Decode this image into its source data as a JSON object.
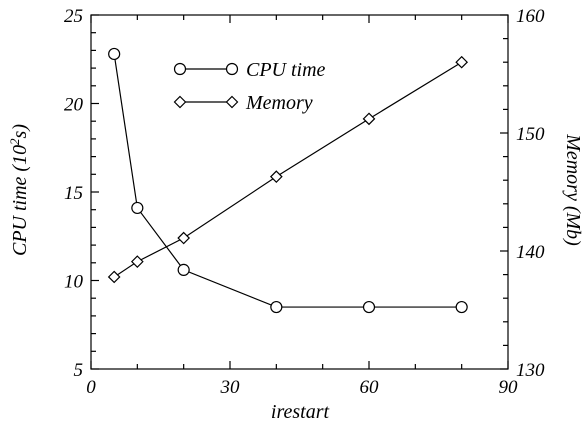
{
  "chart_data": {
    "type": "line",
    "xlabel": "irestart",
    "ylabel_left": "CPU time (10",
    "ylabel_left_sup": "2",
    "ylabel_left_tail": "s)",
    "ylabel_right": "Memory (Mb)",
    "xlim": [
      0,
      90
    ],
    "ylim_left": [
      5,
      25
    ],
    "ylim_right": [
      130,
      160
    ],
    "x_ticks": [
      0,
      30,
      60,
      90
    ],
    "x_minor_ticks": [
      10,
      20,
      40,
      50,
      70,
      80
    ],
    "y_left_ticks": [
      5,
      10,
      15,
      20,
      25
    ],
    "y_right_ticks": [
      130,
      140,
      150,
      160
    ],
    "grid": false,
    "legend_position": "top-center",
    "series": [
      {
        "name": "CPU time",
        "axis": "left",
        "marker": "circle",
        "x": [
          5,
          10,
          20,
          40,
          60,
          80
        ],
        "y": [
          22.8,
          14.1,
          10.6,
          8.5,
          8.5,
          8.5
        ]
      },
      {
        "name": "Memory",
        "axis": "right",
        "marker": "diamond",
        "x": [
          5,
          10,
          20,
          40,
          60,
          80
        ],
        "y": [
          137.8,
          139.1,
          141.1,
          146.3,
          151.2,
          156.0
        ]
      }
    ]
  }
}
